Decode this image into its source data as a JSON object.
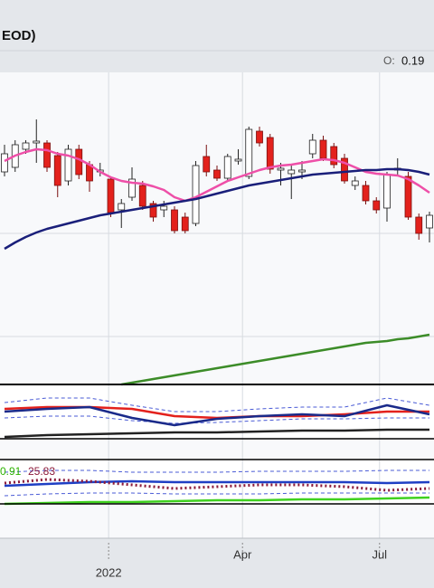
{
  "header": {
    "title": "EOD)",
    "open_label": "O:",
    "open_value": 0.19
  },
  "chart_data": [
    {
      "type": "candlestick",
      "categories": [
        null,
        null,
        null,
        null,
        null,
        null,
        null,
        null,
        null,
        null,
        null,
        null,
        null,
        null,
        null,
        null,
        null,
        null,
        null,
        null,
        null,
        null,
        null,
        null,
        null,
        null,
        null,
        null,
        null,
        null,
        null,
        null,
        null,
        null,
        null,
        null,
        null,
        null,
        null,
        null,
        null
      ],
      "open": [
        310,
        315,
        335,
        342,
        342,
        328,
        300,
        335,
        318,
        310,
        302,
        268,
        282,
        295,
        275,
        268,
        268,
        260,
        253,
        327,
        312,
        303,
        322,
        305,
        355,
        348,
        312,
        308,
        310,
        330,
        345,
        338,
        325,
        295,
        295,
        278,
        270,
        312,
        305,
        260,
        248
      ],
      "close": [
        330,
        340,
        342,
        344,
        315,
        295,
        335,
        307,
        300,
        312,
        265,
        275,
        302,
        272,
        260,
        272,
        245,
        245,
        317,
        310,
        303,
        327,
        324,
        357,
        342,
        313,
        314,
        312,
        312,
        345,
        325,
        318,
        300,
        300,
        278,
        268,
        307,
        314,
        260,
        242,
        262
      ],
      "high": [
        340,
        345,
        345,
        368,
        345,
        332,
        340,
        340,
        322,
        320,
        305,
        280,
        315,
        300,
        278,
        278,
        272,
        265,
        322,
        340,
        317,
        330,
        335,
        360,
        360,
        352,
        320,
        317,
        322,
        352,
        350,
        342,
        330,
        305,
        300,
        282,
        310,
        325,
        310,
        264,
        266
      ],
      "low": [
        305,
        310,
        330,
        320,
        310,
        282,
        295,
        302,
        288,
        305,
        260,
        248,
        278,
        268,
        255,
        260,
        242,
        242,
        250,
        305,
        300,
        300,
        318,
        302,
        338,
        308,
        295,
        280,
        302,
        325,
        322,
        314,
        297,
        290,
        274,
        264,
        255,
        305,
        257,
        235,
        232
      ],
      "up_color": "#ffffff",
      "down_color": "#e3211c",
      "series": [
        {
          "color": "#ee4fa8",
          "values": [
            322,
            328,
            332,
            335,
            334,
            330,
            328,
            324,
            318,
            310,
            304,
            300,
            298,
            297,
            294,
            290,
            282,
            278,
            282,
            288,
            294,
            300,
            304,
            308,
            312,
            315,
            317,
            318,
            320,
            322,
            324,
            323,
            320,
            315,
            310,
            308,
            307,
            306,
            302,
            295,
            287
          ]
        },
        {
          "color": "#1a1f7a",
          "values": [
            225,
            232,
            238,
            243,
            247,
            250,
            253,
            256,
            259,
            262,
            264,
            266,
            268,
            270,
            272,
            274,
            276,
            278,
            280,
            283,
            286,
            289,
            292,
            295,
            297,
            299,
            301,
            303,
            305,
            307,
            308,
            309,
            310,
            311,
            312,
            312,
            313,
            313,
            312,
            310,
            307
          ]
        },
        {
          "color": "#3c8c28",
          "values": [
            null,
            null,
            null,
            null,
            null,
            null,
            null,
            null,
            null,
            null,
            null,
            75,
            77,
            79,
            81,
            83,
            85,
            87,
            89,
            91,
            93,
            95,
            97,
            99,
            101,
            103,
            105,
            107,
            109,
            111,
            113,
            115,
            117,
            119,
            121,
            122,
            123,
            125,
            126,
            128,
            130
          ]
        }
      ],
      "ylim": [
        75,
        420
      ],
      "yticks": [
        128,
        242
      ],
      "grid": true,
      "xticks": [
        {
          "value": 9.8,
          "label": "2022"
        },
        {
          "value": 22.4,
          "label": "Apr"
        },
        {
          "value": 35.3,
          "label": "Jul"
        }
      ]
    },
    {
      "type": "line",
      "x": [
        0,
        4,
        8,
        12,
        16,
        20,
        24,
        28,
        32,
        36,
        40
      ],
      "series": [
        {
          "color": "#4a5bd6",
          "dash": true,
          "values": [
            55,
            60,
            60,
            52,
            45,
            45,
            48,
            50,
            50,
            60,
            52
          ]
        },
        {
          "color": "#4a5bd6",
          "dash": true,
          "values": [
            38,
            40,
            40,
            35,
            32,
            33,
            35,
            37,
            37,
            38,
            38
          ]
        },
        {
          "color": "#e3211c",
          "values": [
            48,
            50,
            50,
            48,
            40,
            38,
            40,
            40,
            42,
            45,
            45
          ]
        },
        {
          "color": "#1a2a8a",
          "values": [
            45,
            48,
            50,
            38,
            30,
            37,
            40,
            42,
            40,
            52,
            42
          ]
        },
        {
          "color": "#222222",
          "values": [
            17,
            19,
            20,
            21,
            22,
            22,
            23,
            24,
            24,
            25,
            25
          ]
        }
      ],
      "ylim": [
        15,
        75
      ]
    },
    {
      "type": "line",
      "x": [
        0,
        4,
        8,
        12,
        16,
        20,
        24,
        28,
        32,
        36,
        40
      ],
      "series": [
        {
          "color": "#4a5bd6",
          "dash": true,
          "values": [
            78,
            80,
            80,
            78,
            78,
            78,
            79,
            79,
            79,
            80,
            80
          ]
        },
        {
          "color": "#4a5bd6",
          "dash": true,
          "values": [
            52,
            54,
            55,
            55,
            54,
            54,
            54,
            55,
            55,
            55,
            55
          ]
        },
        {
          "color": "#1f3fc4",
          "values": [
            63,
            65,
            67,
            68,
            67,
            67,
            67,
            67,
            67,
            66,
            67
          ]
        },
        {
          "color": "#8b1a3a",
          "dotted": true,
          "values": [
            66,
            70,
            68,
            64,
            60,
            62,
            64,
            64,
            62,
            58,
            60
          ]
        },
        {
          "color": "#3fd11f",
          "values": [
            43,
            44,
            45,
            45,
            46,
            47,
            47,
            48,
            48,
            49,
            50
          ]
        }
      ],
      "ylim": [
        43,
        92
      ],
      "readouts": [
        {
          "value": 0.91,
          "color": "#2db300"
        },
        {
          "value": 25.83,
          "color": "#8b1a3a"
        }
      ]
    }
  ]
}
